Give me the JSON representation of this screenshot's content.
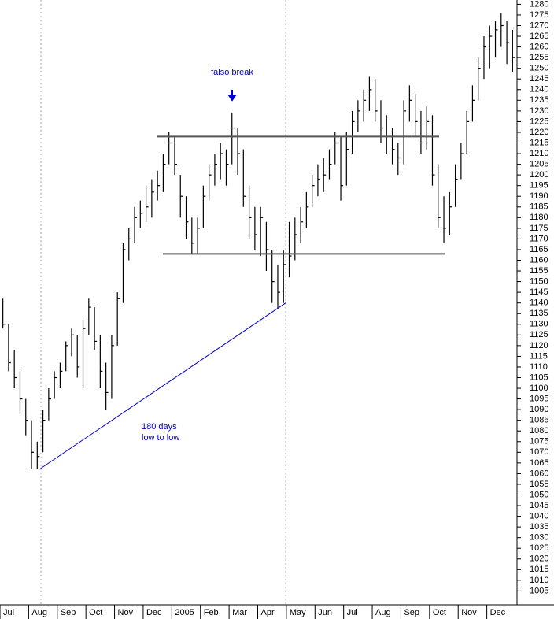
{
  "chart_data": {
    "type": "ohlc",
    "annotations": [
      "falso break",
      "180 days",
      "low to low"
    ],
    "categories": [
      "Jul",
      null,
      null,
      null,
      null,
      "Aug",
      null,
      null,
      null,
      null,
      "Sep",
      null,
      null,
      null,
      null,
      "Oct",
      null,
      null,
      null,
      null,
      "Nov",
      null,
      null,
      null,
      null,
      "Dec",
      null,
      null,
      null,
      null,
      "2005",
      null,
      null,
      null,
      null,
      "Feb",
      null,
      null,
      null,
      null,
      "Mar",
      null,
      null,
      null,
      null,
      "Apr",
      null,
      null,
      null,
      null,
      "May",
      null,
      null,
      null,
      null,
      "Jun",
      null,
      null,
      null,
      null,
      "Jul",
      null,
      null,
      null,
      null,
      "Aug",
      null,
      null,
      null,
      null,
      "Sep",
      null,
      null,
      null,
      null,
      "Oct",
      null,
      null,
      null,
      null,
      "Nov",
      null,
      null,
      null,
      null,
      "Dec",
      null,
      null,
      null,
      null
    ],
    "high": [
      1142,
      1130,
      1118,
      1108,
      1095,
      1085,
      1075,
      1090,
      1100,
      1108,
      1112,
      1122,
      1128,
      1125,
      1132,
      1142,
      1138,
      1125,
      1112,
      1125,
      1145,
      1168,
      1175,
      1185,
      1188,
      1195,
      1198,
      1202,
      1210,
      1220,
      1218,
      1200,
      1190,
      1180,
      1180,
      1195,
      1205,
      1210,
      1215,
      1212,
      1229,
      1222,
      1212,
      1195,
      1185,
      1185,
      1178,
      1165,
      1158,
      1165,
      1178,
      1180,
      1185,
      1192,
      1200,
      1205,
      1208,
      1212,
      1220,
      1218,
      1220,
      1230,
      1235,
      1240,
      1246,
      1245,
      1235,
      1228,
      1222,
      1215,
      1235,
      1242,
      1238,
      1230,
      1232,
      1228,
      1205,
      1190,
      1192,
      1205,
      1215,
      1230,
      1242,
      1255,
      1265,
      1270,
      1272,
      1276,
      1272,
      1268
    ],
    "low": [
      1128,
      1108,
      1100,
      1088,
      1078,
      1062,
      1062,
      1070,
      1085,
      1095,
      1100,
      1108,
      1115,
      1105,
      1100,
      1125,
      1118,
      1100,
      1090,
      1095,
      1120,
      1140,
      1160,
      1168,
      1175,
      1178,
      1180,
      1188,
      1192,
      1205,
      1200,
      1180,
      1170,
      1163,
      1163,
      1175,
      1188,
      1195,
      1198,
      1195,
      1205,
      1200,
      1185,
      1170,
      1165,
      1162,
      1155,
      1140,
      1137,
      1140,
      1152,
      1160,
      1168,
      1175,
      1185,
      1190,
      1192,
      1198,
      1205,
      1188,
      1195,
      1210,
      1220,
      1225,
      1230,
      1225,
      1215,
      1210,
      1205,
      1200,
      1205,
      1225,
      1218,
      1210,
      1212,
      1195,
      1175,
      1168,
      1172,
      1185,
      1198,
      1210,
      1225,
      1235,
      1245,
      1250,
      1255,
      1260,
      1252,
      1248
    ],
    "close": [
      1130,
      1112,
      1105,
      1095,
      1085,
      1070,
      1068,
      1085,
      1095,
      1105,
      1108,
      1120,
      1125,
      1110,
      1128,
      1138,
      1122,
      1108,
      1098,
      1120,
      1142,
      1165,
      1170,
      1180,
      1182,
      1185,
      1192,
      1195,
      1205,
      1215,
      1205,
      1190,
      1178,
      1168,
      1175,
      1190,
      1200,
      1205,
      1210,
      1205,
      1222,
      1210,
      1190,
      1180,
      1172,
      1180,
      1165,
      1150,
      1145,
      1158,
      1162,
      1172,
      1178,
      1185,
      1195,
      1198,
      1200,
      1205,
      1215,
      1195,
      1212,
      1225,
      1230,
      1235,
      1240,
      1230,
      1222,
      1218,
      1212,
      1208,
      1230,
      1235,
      1225,
      1215,
      1225,
      1200,
      1180,
      1175,
      1185,
      1198,
      1210,
      1225,
      1235,
      1250,
      1260,
      1265,
      1268,
      1270,
      1262,
      1255
    ],
    "color": "#000000",
    "reference_lines": [
      1218,
      1163
    ],
    "trendline": [
      1062,
      1140
    ],
    "ylim": [
      998.5,
      1282
    ],
    "yticks": [
      1005,
      1010,
      1015,
      1020,
      1025,
      1030,
      1035,
      1040,
      1045,
      1050,
      1055,
      1060,
      1065,
      1070,
      1075,
      1080,
      1085,
      1090,
      1095,
      1100,
      1105,
      1110,
      1115,
      1120,
      1125,
      1130,
      1135,
      1140,
      1145,
      1150,
      1155,
      1160,
      1165,
      1170,
      1175,
      1180,
      1185,
      1190,
      1195,
      1200,
      1205,
      1210,
      1215,
      1220,
      1225,
      1230,
      1235,
      1240,
      1245,
      1250,
      1255,
      1260,
      1265,
      1270,
      1275,
      1280
    ]
  }
}
